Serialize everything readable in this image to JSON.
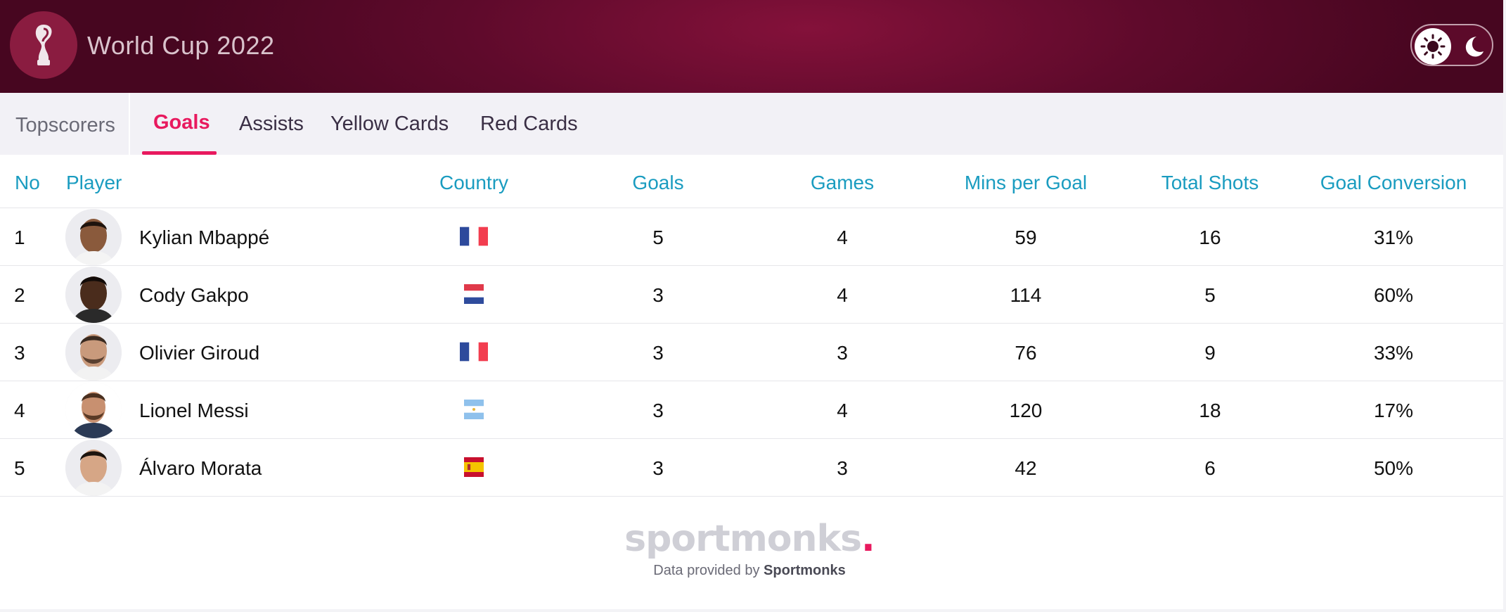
{
  "header": {
    "title": "World Cup 2022",
    "logo_icon": "world-cup-trophy-icon",
    "theme_toggle": {
      "light_icon": "sun-icon",
      "dark_icon": "moon-icon",
      "selected": "light"
    }
  },
  "tabs": {
    "section_label": "Topscorers",
    "items": [
      {
        "label": "Goals",
        "active": true
      },
      {
        "label": "Assists",
        "active": false
      },
      {
        "label": "Yellow Cards",
        "active": false
      },
      {
        "label": "Red Cards",
        "active": false
      }
    ]
  },
  "table": {
    "columns": {
      "no": "No",
      "player": "Player",
      "country": "Country",
      "goals": "Goals",
      "games": "Games",
      "mins_per_goal": "Mins per Goal",
      "total_shots": "Total Shots",
      "goal_conversion": "Goal Conversion"
    },
    "rows": [
      {
        "no": "1",
        "player": "Kylian Mbappé",
        "flag": "france-flag",
        "goals": "5",
        "games": "4",
        "mins_per_goal": "59",
        "total_shots": "16",
        "goal_conversion": "31%"
      },
      {
        "no": "2",
        "player": "Cody Gakpo",
        "flag": "netherlands-flag",
        "goals": "3",
        "games": "4",
        "mins_per_goal": "114",
        "total_shots": "5",
        "goal_conversion": "60%"
      },
      {
        "no": "3",
        "player": "Olivier Giroud",
        "flag": "france-flag",
        "goals": "3",
        "games": "3",
        "mins_per_goal": "76",
        "total_shots": "9",
        "goal_conversion": "33%"
      },
      {
        "no": "4",
        "player": "Lionel Messi",
        "flag": "argentina-flag",
        "goals": "3",
        "games": "4",
        "mins_per_goal": "120",
        "total_shots": "18",
        "goal_conversion": "17%"
      },
      {
        "no": "5",
        "player": "Álvaro Morata",
        "flag": "spain-flag",
        "goals": "3",
        "games": "3",
        "mins_per_goal": "42",
        "total_shots": "6",
        "goal_conversion": "50%"
      }
    ]
  },
  "footer": {
    "brand": "sportmonks",
    "brand_dot": ".",
    "credit_prefix": "Data provided by",
    "credit_name": "Sportmonks"
  },
  "colors": {
    "header_bg": "#5e0a2b",
    "accent": "#e8195e",
    "column_header": "#1a9cc0"
  }
}
